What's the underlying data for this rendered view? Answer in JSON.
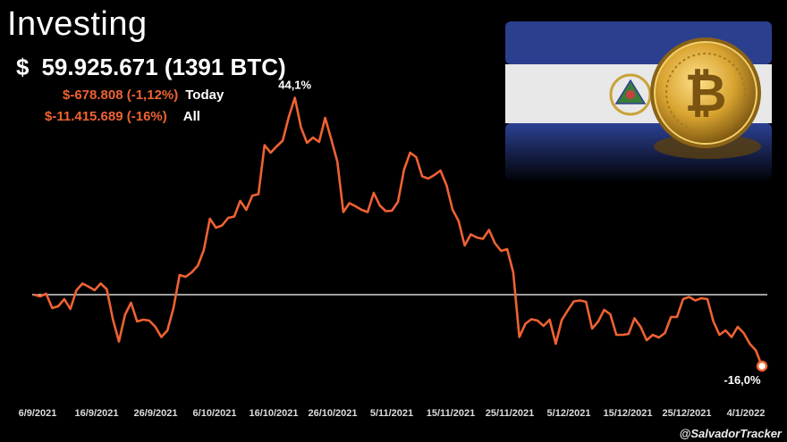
{
  "header": {
    "title": "Investing",
    "currency_symbol": "$",
    "holding_value": "59.925.671 (1391 BTC)",
    "today_change": "$-678.808 (-1,12%)",
    "today_label": "Today",
    "all_change": "$-11.415.689 (-16%)",
    "all_label": "All"
  },
  "colors": {
    "line": "#ee6233",
    "baseline": "#ffffff",
    "negative_text": "#ee6233",
    "flag_blue": "#2b3f8f",
    "coin_gold": "#d9a430"
  },
  "banner": {
    "flag_icon": "el-salvador-flag-icon",
    "coin_icon": "bitcoin-coin-icon"
  },
  "watermark": "@SalvadorTracker",
  "chart_data": {
    "type": "line",
    "title": "",
    "xlabel": "",
    "ylabel": "",
    "ylim": [
      -22,
      50
    ],
    "grid": false,
    "baseline": 0,
    "x_ticks": [
      "6/9/2021",
      "16/9/2021",
      "26/9/2021",
      "6/10/2021",
      "16/10/2021",
      "26/10/2021",
      "5/11/2021",
      "15/11/2021",
      "25/11/2021",
      "5/12/2021",
      "15/12/2021",
      "25/12/2021",
      "4/1/2022"
    ],
    "series": [
      {
        "name": "",
        "values": [
          0.0,
          -0.4,
          0.2,
          -3.0,
          -2.6,
          -1.0,
          -3.2,
          1.0,
          2.5,
          1.8,
          1.0,
          2.5,
          1.2,
          -5.5,
          -10.5,
          -4.5,
          -1.8,
          -6.0,
          -5.6,
          -5.8,
          -7.2,
          -9.5,
          -8.0,
          -3.0,
          4.4,
          4.0,
          5.0,
          6.5,
          10.0,
          17.0,
          15.0,
          15.5,
          17.2,
          17.5,
          21.0,
          19.0,
          22.2,
          22.5,
          33.5,
          31.8,
          33.2,
          34.5,
          39.8,
          44.1,
          37.5,
          34.0,
          35.2,
          34.2,
          39.6,
          34.8,
          29.8,
          18.5,
          20.5,
          19.8,
          19.0,
          18.5,
          22.8,
          20.0,
          18.7,
          18.8,
          20.8,
          28.0,
          31.8,
          30.8,
          26.5,
          26.0,
          26.8,
          27.8,
          24.5,
          19.0,
          16.5,
          11.0,
          13.5,
          12.8,
          12.5,
          14.5,
          11.5,
          9.8,
          10.2,
          5.0,
          -9.5,
          -6.5,
          -5.5,
          -5.8,
          -7.0,
          -5.6,
          -11.0,
          -5.7,
          -3.5,
          -1.5,
          -1.3,
          -1.6,
          -7.6,
          -6.0,
          -3.4,
          -4.4,
          -9.0,
          -9.0,
          -8.8,
          -5.3,
          -7.2,
          -10.2,
          -9.0,
          -9.6,
          -8.6,
          -5.0,
          -5.0,
          -1.0,
          -0.5,
          -1.3,
          -0.8,
          -1.0,
          -6.0,
          -9.0,
          -8.0,
          -9.5,
          -7.2,
          -8.6,
          -11.0,
          -12.5,
          -16.0
        ]
      }
    ],
    "annotations": [
      {
        "label": "44,1%",
        "index": 43
      },
      {
        "label": "-16,0%",
        "index": 120
      }
    ]
  }
}
